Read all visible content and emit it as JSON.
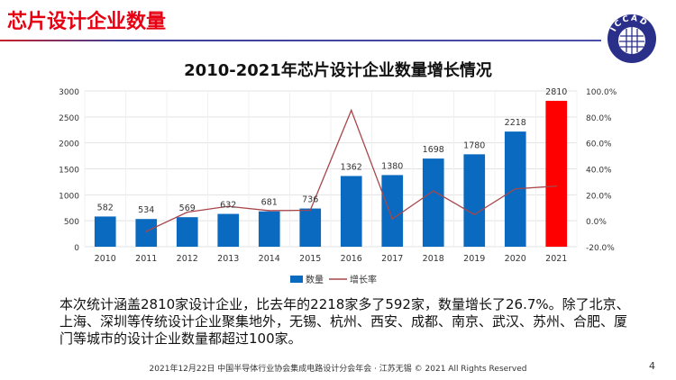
{
  "header": {
    "title": "芯片设计企业数量",
    "logo_text": "ICCAD"
  },
  "chart_data": {
    "type": "bar+line",
    "title": "2010-2021年芯片设计企业数量增长情况",
    "categories": [
      "2010",
      "2011",
      "2012",
      "2013",
      "2014",
      "2015",
      "2016",
      "2017",
      "2018",
      "2019",
      "2020",
      "2021"
    ],
    "series": [
      {
        "name": "数量",
        "type": "bar",
        "axis": "left",
        "values": [
          582,
          534,
          569,
          632,
          681,
          736,
          1362,
          1380,
          1698,
          1780,
          2218,
          2810
        ],
        "color": "#0a6abf",
        "highlight_color": "#ff0000",
        "highlight_index": 11
      },
      {
        "name": "增长率",
        "type": "line",
        "axis": "right",
        "values": [
          null,
          -8.2,
          6.6,
          11.1,
          7.8,
          8.1,
          85.1,
          1.3,
          23.0,
          4.8,
          24.6,
          26.7
        ],
        "color": "#a8464a"
      }
    ],
    "left_axis": {
      "ylim": [
        0,
        3000
      ],
      "ticks": [
        "0",
        "500",
        "1000",
        "1500",
        "2000",
        "2500",
        "3000"
      ]
    },
    "right_axis": {
      "ylim": [
        -20,
        100
      ],
      "ticks": [
        "-20.0%",
        "0.0%",
        "20.0%",
        "40.0%",
        "60.0%",
        "80.0%",
        "100.0%"
      ]
    },
    "grid": true,
    "legend": "bottom"
  },
  "body_text": "本次统计涵盖2810家设计企业，比去年的2218家多了592家，数量增长了26.7%。除了北京、上海、深圳等传统设计企业聚集地外，无锡、杭州、西安、成都、南京、武汉、苏州、合肥、厦门等城市的设计企业数量都超过100家。",
  "footer": {
    "text": "2021年12月22日 中国半导体行业协会集成电路设计分会年会 · 江苏无锡 © 2021 All Rights Reserved",
    "page": "4"
  }
}
